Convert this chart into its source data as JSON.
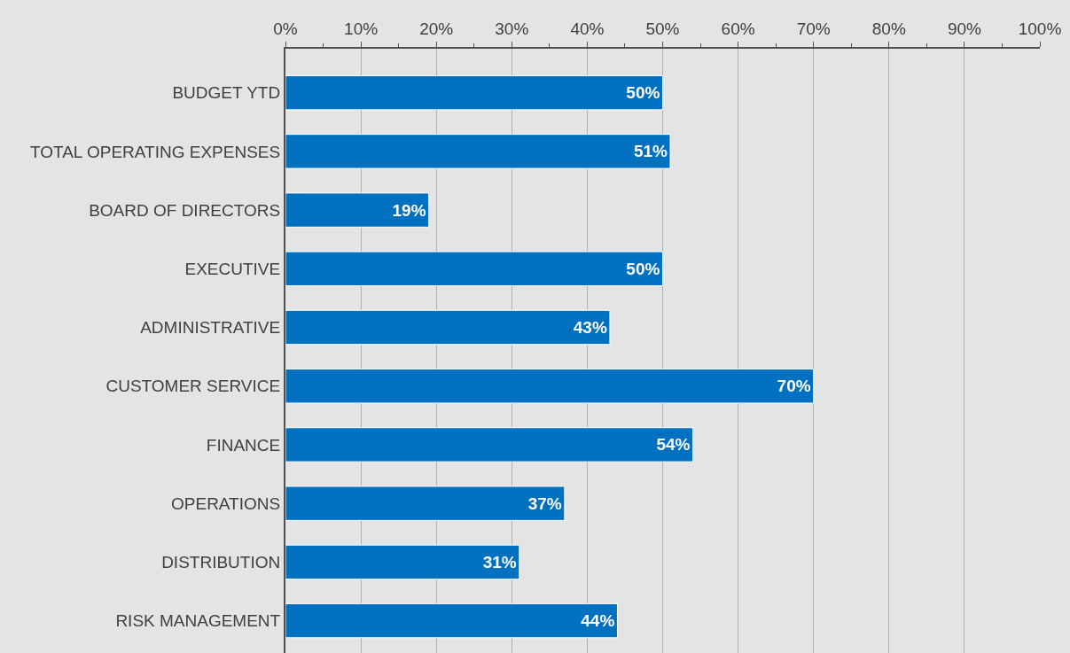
{
  "chart_data": {
    "type": "bar",
    "orientation": "horizontal",
    "categories": [
      "BUDGET YTD",
      "TOTAL OPERATING EXPENSES",
      "BOARD OF DIRECTORS",
      "EXECUTIVE",
      "ADMINISTRATIVE",
      "CUSTOMER SERVICE",
      "FINANCE",
      "OPERATIONS",
      "DISTRIBUTION",
      "RISK MANAGEMENT"
    ],
    "values": [
      50,
      51,
      19,
      50,
      43,
      70,
      54,
      37,
      31,
      44
    ],
    "value_labels": [
      "50%",
      "51%",
      "19%",
      "50%",
      "43%",
      "70%",
      "54%",
      "37%",
      "31%",
      "44%"
    ],
    "color": "#0070c0",
    "xlim": [
      0,
      100
    ],
    "xticks": [
      {
        "value": 0,
        "label": "0%"
      },
      {
        "value": 10,
        "label": "10%"
      },
      {
        "value": 20,
        "label": "20%"
      },
      {
        "value": 30,
        "label": "30%"
      },
      {
        "value": 40,
        "label": "40%"
      },
      {
        "value": 50,
        "label": "50%"
      },
      {
        "value": 60,
        "label": "60%"
      },
      {
        "value": 70,
        "label": "70%"
      },
      {
        "value": 80,
        "label": "80%"
      },
      {
        "value": 90,
        "label": "90%"
      },
      {
        "value": 100,
        "label": "100%"
      }
    ],
    "grid": "x"
  }
}
